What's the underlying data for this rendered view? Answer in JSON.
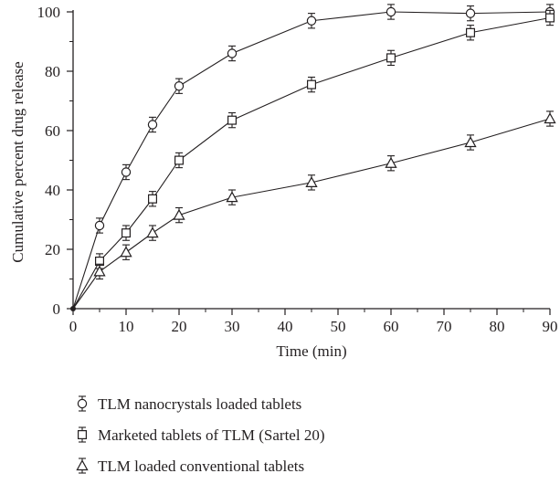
{
  "chart_data": {
    "type": "line",
    "title": "",
    "xlabel": "Time (min)",
    "ylabel": "Cumulative percent drug release",
    "xlim": [
      0,
      90
    ],
    "ylim": [
      0,
      100
    ],
    "xticks": [
      0,
      10,
      20,
      30,
      40,
      50,
      60,
      70,
      80,
      90
    ],
    "yticks": [
      0,
      20,
      40,
      60,
      80,
      100
    ],
    "grid": false,
    "legend_position": "bottom",
    "x": [
      0,
      5,
      10,
      15,
      20,
      30,
      45,
      60,
      75,
      90
    ],
    "series": [
      {
        "name": "TLM nanocrystals loaded tablets",
        "marker": "circle",
        "values": [
          0,
          28,
          46,
          62,
          75,
          86,
          97,
          100,
          99.5,
          100
        ],
        "errors": [
          0,
          2.5,
          2.5,
          2.5,
          2.5,
          2.5,
          2.5,
          2.5,
          2.5,
          2.5
        ]
      },
      {
        "name": "Marketed tablets of TLM (Sartel 20)",
        "marker": "square",
        "values": [
          0,
          16,
          25.5,
          37,
          50,
          63.5,
          75.5,
          84.5,
          93,
          98
        ],
        "errors": [
          0,
          2.5,
          2.5,
          2.5,
          2.5,
          2.5,
          2.5,
          2.5,
          2.5,
          2.5
        ]
      },
      {
        "name": "TLM loaded conventional tablets",
        "marker": "triangle",
        "values": [
          0,
          12.5,
          19,
          25.5,
          31.5,
          37.5,
          42.5,
          49,
          56,
          64
        ],
        "errors": [
          0,
          2.5,
          2.5,
          2.5,
          2.5,
          2.5,
          2.5,
          2.5,
          2.5,
          2.5
        ]
      }
    ]
  }
}
